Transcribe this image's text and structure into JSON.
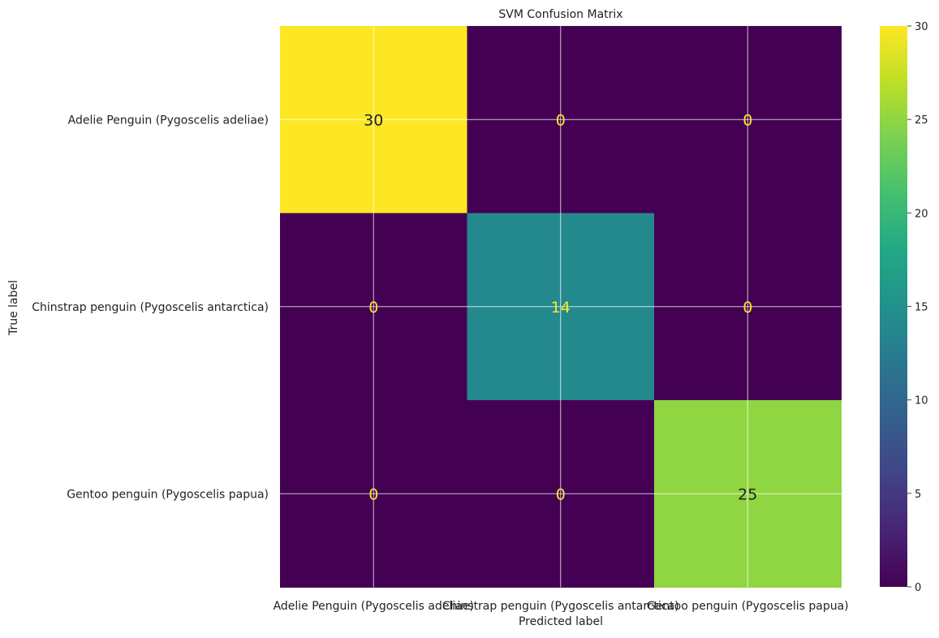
{
  "chart_data": {
    "type": "heatmap",
    "title": "SVM Confusion Matrix",
    "xlabel": "Predicted label",
    "ylabel": "True label",
    "row_labels": [
      "Adelie Penguin (Pygoscelis adeliae)",
      "Chinstrap penguin (Pygoscelis antarctica)",
      "Gentoo penguin (Pygoscelis papua)"
    ],
    "col_labels": [
      "Adelie Penguin (Pygoscelis adeliae)",
      "Chinstrap penguin (Pygoscelis antarctica)",
      "Gentoo penguin (Pygoscelis papua)"
    ],
    "matrix": [
      [
        30,
        0,
        0
      ],
      [
        0,
        14,
        0
      ],
      [
        0,
        0,
        25
      ]
    ],
    "colorbar": {
      "colormap": "viridis",
      "range": [
        0,
        30
      ],
      "ticks": [
        0,
        5,
        10,
        15,
        20,
        25,
        30
      ]
    },
    "grid": true
  }
}
